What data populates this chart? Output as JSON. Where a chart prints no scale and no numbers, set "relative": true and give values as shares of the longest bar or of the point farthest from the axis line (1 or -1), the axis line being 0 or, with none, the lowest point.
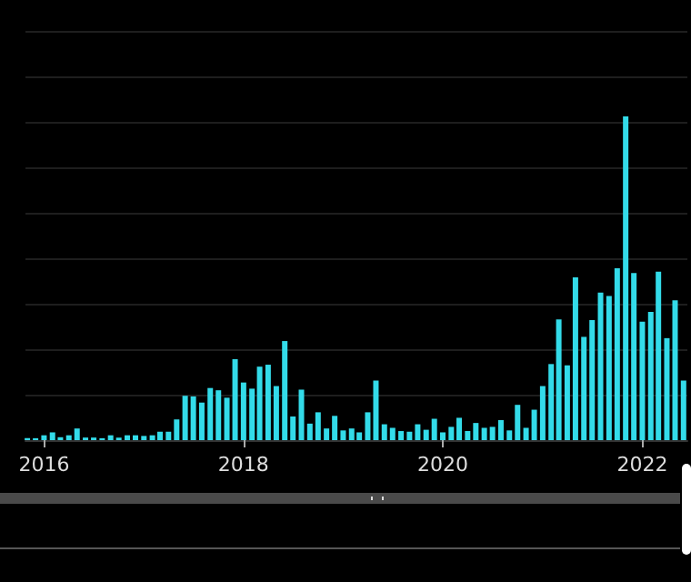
{
  "chart_data": {
    "type": "bar",
    "relative": true,
    "grid": "y",
    "color": "#33dbe9",
    "x": [
      "2015-11",
      "2015-12",
      "2016-01",
      "2016-02",
      "2016-03",
      "2016-04",
      "2016-05",
      "2016-06",
      "2016-07",
      "2016-08",
      "2016-09",
      "2016-10",
      "2016-11",
      "2016-12",
      "2017-01",
      "2017-02",
      "2017-03",
      "2017-04",
      "2017-05",
      "2017-06",
      "2017-07",
      "2017-08",
      "2017-09",
      "2017-10",
      "2017-11",
      "2017-12",
      "2018-01",
      "2018-02",
      "2018-03",
      "2018-04",
      "2018-05",
      "2018-06",
      "2018-07",
      "2018-08",
      "2018-09",
      "2018-10",
      "2018-11",
      "2018-12",
      "2019-01",
      "2019-02",
      "2019-03",
      "2019-04",
      "2019-05",
      "2019-06",
      "2019-07",
      "2019-08",
      "2019-09",
      "2019-10",
      "2019-11",
      "2019-12",
      "2020-01",
      "2020-02",
      "2020-03",
      "2020-04",
      "2020-05",
      "2020-06",
      "2020-07",
      "2020-08",
      "2020-09",
      "2020-10",
      "2020-11",
      "2020-12",
      "2021-01",
      "2021-02",
      "2021-03",
      "2021-04",
      "2021-05",
      "2021-06",
      "2021-07",
      "2021-08",
      "2021-09",
      "2021-10",
      "2021-11",
      "2021-12",
      "2022-01",
      "2022-02",
      "2022-03",
      "2022-04",
      "2022-05",
      "2022-06"
    ],
    "values": [
      0.006,
      0.006,
      0.015,
      0.024,
      0.009,
      0.015,
      0.036,
      0.008,
      0.008,
      0.006,
      0.015,
      0.008,
      0.015,
      0.015,
      0.013,
      0.015,
      0.026,
      0.026,
      0.064,
      0.137,
      0.135,
      0.116,
      0.161,
      0.154,
      0.131,
      0.25,
      0.178,
      0.159,
      0.227,
      0.233,
      0.167,
      0.306,
      0.073,
      0.156,
      0.051,
      0.086,
      0.036,
      0.075,
      0.03,
      0.036,
      0.024,
      0.086,
      0.184,
      0.049,
      0.038,
      0.028,
      0.026,
      0.049,
      0.032,
      0.066,
      0.024,
      0.041,
      0.069,
      0.028,
      0.053,
      0.038,
      0.041,
      0.062,
      0.03,
      0.109,
      0.038,
      0.094,
      0.167,
      0.235,
      0.373,
      0.231,
      0.503,
      0.319,
      0.371,
      0.456,
      0.445,
      0.531,
      1,
      0.516,
      0.366,
      0.396,
      0.52,
      0.315,
      0.432,
      0.184
    ],
    "xlim": [
      "2015-10-25",
      "2022-06-15"
    ],
    "xticks": [
      "2016",
      "2018",
      "2020",
      "2022"
    ]
  }
}
